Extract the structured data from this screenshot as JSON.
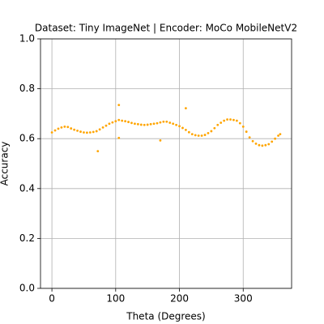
{
  "chart_data": {
    "type": "scatter",
    "title": "Dataset: Tiny ImageNet | Encoder: MoCo MobileNetV2",
    "x_label": "Theta (Degrees)",
    "y_label": "Accuracy",
    "color": "#ffa500",
    "grid": true,
    "xlim": [
      -17.9,
      375.9
    ],
    "ylim": [
      0,
      1
    ],
    "xticks": [
      0,
      100,
      200,
      300
    ],
    "yticks": [
      {
        "value": 0,
        "label": "0.0"
      },
      {
        "value": 0.2,
        "label": "0.2"
      },
      {
        "value": 0.4,
        "label": "0.4"
      },
      {
        "value": 0.6,
        "label": "0.6"
      },
      {
        "value": 0.8,
        "label": "0.8"
      },
      {
        "value": 1,
        "label": "1.0"
      }
    ],
    "x": [
      0,
      5,
      10,
      15,
      20,
      25,
      30,
      35,
      40,
      45,
      50,
      55,
      60,
      65,
      70,
      75,
      80,
      85,
      90,
      95,
      100,
      105,
      110,
      115,
      120,
      125,
      130,
      135,
      140,
      145,
      150,
      155,
      160,
      165,
      170,
      175,
      180,
      185,
      190,
      195,
      200,
      205,
      210,
      215,
      220,
      225,
      230,
      235,
      240,
      245,
      250,
      255,
      260,
      265,
      270,
      275,
      280,
      285,
      290,
      295,
      300,
      305,
      310,
      315,
      320,
      325,
      330,
      335,
      340,
      345,
      350,
      355,
      358,
      72,
      105,
      105,
      170,
      210
    ],
    "values": [
      0.625,
      0.633,
      0.64,
      0.645,
      0.648,
      0.647,
      0.641,
      0.636,
      0.632,
      0.628,
      0.625,
      0.624,
      0.625,
      0.627,
      0.63,
      0.637,
      0.645,
      0.652,
      0.66,
      0.665,
      0.67,
      0.675,
      0.672,
      0.67,
      0.667,
      0.663,
      0.66,
      0.658,
      0.656,
      0.655,
      0.656,
      0.658,
      0.66,
      0.662,
      0.665,
      0.668,
      0.668,
      0.664,
      0.66,
      0.655,
      0.65,
      0.643,
      0.635,
      0.626,
      0.618,
      0.614,
      0.612,
      0.612,
      0.615,
      0.622,
      0.63,
      0.642,
      0.655,
      0.664,
      0.672,
      0.677,
      0.677,
      0.675,
      0.672,
      0.662,
      0.648,
      0.628,
      0.605,
      0.59,
      0.58,
      0.574,
      0.572,
      0.574,
      0.578,
      0.588,
      0.6,
      0.612,
      0.618,
      0.55,
      0.735,
      0.603,
      0.593,
      0.722
    ]
  }
}
